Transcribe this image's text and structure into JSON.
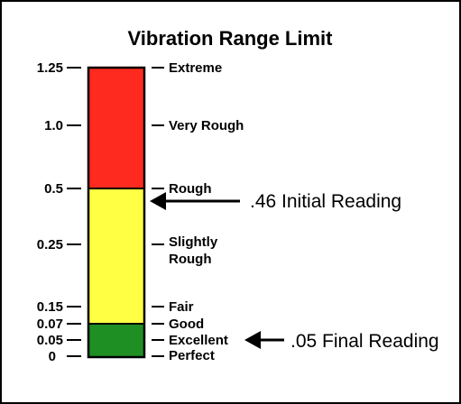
{
  "title": "Vibration Range Limit",
  "scale": [
    {
      "value_label": "1.25",
      "level": "Extreme"
    },
    {
      "value_label": "1.0",
      "level": "Very Rough"
    },
    {
      "value_label": "0.5",
      "level": "Rough"
    },
    {
      "value_label": "0.25",
      "level_lines": [
        "Slightly",
        "Rough"
      ]
    },
    {
      "value_label": "0.15",
      "level": "Fair"
    },
    {
      "value_label": "0.07",
      "level": "Good"
    },
    {
      "value_label": "0.05",
      "level": "Excellent"
    },
    {
      "value_label": "0",
      "level": "Perfect"
    }
  ],
  "zones": [
    {
      "name": "red-zone",
      "color": "#ff2a1f"
    },
    {
      "name": "yellow-zone",
      "color": "#ffff44"
    },
    {
      "name": "green-zone",
      "color": "#1e8f23"
    }
  ],
  "readings": [
    {
      "label": ".46 Initial Reading"
    },
    {
      "label": ".05 Final Reading"
    }
  ]
}
